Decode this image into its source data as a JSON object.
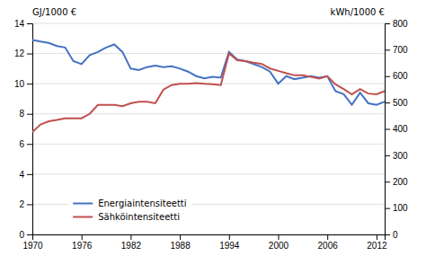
{
  "chart_data": {
    "type": "line",
    "y_label": "GJ/1000 €",
    "y2_label": "kWh/1000 €",
    "x": [
      1970,
      1971,
      1972,
      1973,
      1974,
      1975,
      1976,
      1977,
      1978,
      1979,
      1980,
      1981,
      1982,
      1983,
      1984,
      1985,
      1986,
      1987,
      1988,
      1989,
      1990,
      1991,
      1992,
      1993,
      1994,
      1995,
      1996,
      1997,
      1998,
      1999,
      2000,
      2001,
      2002,
      2003,
      2004,
      2005,
      2006,
      2007,
      2008,
      2009,
      2010,
      2011,
      2012,
      2013
    ],
    "series": [
      {
        "name": "Energiaintensiteetti",
        "color": "#4472c4",
        "values": [
          12.9,
          12.8,
          12.7,
          12.5,
          12.4,
          11.5,
          11.3,
          11.9,
          12.1,
          12.4,
          12.6,
          12.1,
          11.0,
          10.9,
          11.1,
          11.2,
          11.1,
          11.15,
          11.0,
          10.8,
          10.5,
          10.35,
          10.45,
          10.4,
          12.1,
          11.6,
          11.5,
          11.3,
          11.1,
          10.8,
          10.0,
          10.5,
          10.3,
          10.4,
          10.5,
          10.4,
          10.5,
          9.5,
          9.3,
          8.6,
          9.4,
          8.7,
          8.6,
          8.8
        ]
      },
      {
        "name": "Sähköintensiteetti",
        "color": "#c0504d",
        "axis": "y2",
        "values": [
          388,
          417,
          429,
          434,
          440,
          440,
          440,
          457,
          491,
          491,
          491,
          486,
          497,
          503,
          503,
          497,
          549,
          566,
          571,
          571,
          574,
          571,
          569,
          566,
          686,
          660,
          657,
          651,
          646,
          629,
          620,
          611,
          603,
          603,
          597,
          591,
          600,
          569,
          551,
          531,
          551,
          534,
          531,
          543
        ]
      }
    ],
    "xlim": [
      1970,
      2013
    ],
    "xticks": [
      1970,
      1976,
      1982,
      1988,
      1994,
      2000,
      2006,
      2012
    ],
    "ylim": [
      0,
      14
    ],
    "yticks": [
      0,
      2,
      4,
      6,
      8,
      10,
      12,
      14
    ],
    "y2lim": [
      0,
      800
    ],
    "y2ticks": [
      0,
      100,
      200,
      300,
      400,
      500,
      600,
      700,
      800
    ],
    "grid": true,
    "legend": "lower left"
  }
}
